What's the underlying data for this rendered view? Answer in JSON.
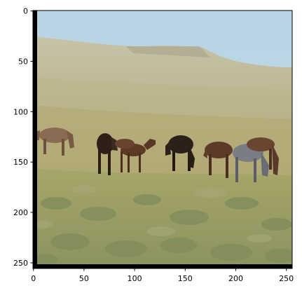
{
  "axes": {
    "x_ticks": [
      "0",
      "50",
      "100",
      "150",
      "200",
      "250"
    ],
    "y_ticks": [
      "0",
      "50",
      "100",
      "150",
      "200",
      "250"
    ]
  },
  "image": {
    "description_colors": {
      "sky": "#b9d6e6",
      "hills": "#c6bea0",
      "grass": "#a0a46c",
      "sage": "#8f9a6a",
      "horse_brown": "#5a3422",
      "horse_dark": "#2a1a12",
      "horse_grey": "#7c7e86"
    }
  }
}
